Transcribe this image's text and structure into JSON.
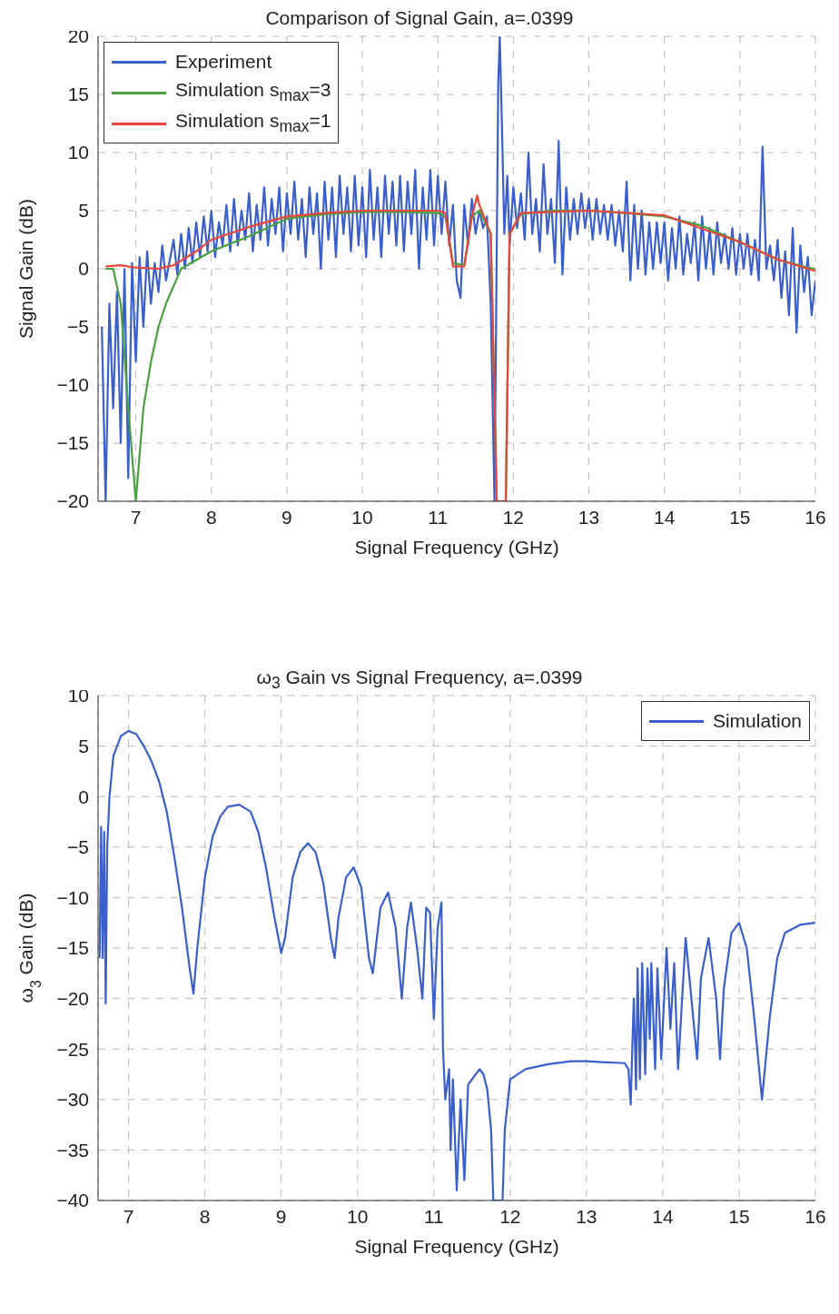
{
  "chart_data": [
    {
      "type": "line",
      "title": "Comparison of Signal Gain, a=.0399",
      "xlabel": "Signal Frequency (GHz)",
      "ylabel": "Signal Gain (dB)",
      "xlim": [
        6.5,
        16
      ],
      "ylim": [
        -20,
        20
      ],
      "xticks": [
        7,
        8,
        9,
        10,
        11,
        12,
        13,
        14,
        15,
        16
      ],
      "yticks": [
        -20,
        -15,
        -10,
        -5,
        0,
        5,
        10,
        15,
        20
      ],
      "grid": true,
      "legend": "top left",
      "series": [
        {
          "name": "Experiment",
          "color": "#3a5fcd",
          "x": [
            6.55,
            6.6,
            6.65,
            6.7,
            6.75,
            6.8,
            6.85,
            6.9,
            6.95,
            7.0,
            7.05,
            7.1,
            7.15,
            7.2,
            7.25,
            7.3,
            7.35,
            7.4,
            7.5,
            7.55,
            7.6,
            7.65,
            7.7,
            7.75,
            7.8,
            7.85,
            7.9,
            7.95,
            8.0,
            8.05,
            8.1,
            8.15,
            8.2,
            8.25,
            8.3,
            8.35,
            8.4,
            8.45,
            8.5,
            8.55,
            8.6,
            8.65,
            8.7,
            8.75,
            8.8,
            8.85,
            8.9,
            8.95,
            9.0,
            9.05,
            9.1,
            9.15,
            9.2,
            9.25,
            9.3,
            9.35,
            9.4,
            9.45,
            9.5,
            9.55,
            9.6,
            9.65,
            9.7,
            9.75,
            9.8,
            9.85,
            9.9,
            9.95,
            10.0,
            10.05,
            10.1,
            10.15,
            10.2,
            10.25,
            10.3,
            10.35,
            10.4,
            10.45,
            10.5,
            10.55,
            10.6,
            10.65,
            10.7,
            10.75,
            10.8,
            10.85,
            10.9,
            10.95,
            11.0,
            11.05,
            11.1,
            11.15,
            11.2,
            11.25,
            11.3,
            11.35,
            11.4,
            11.45,
            11.5,
            11.55,
            11.6,
            11.65,
            11.7,
            11.75,
            11.8,
            11.82,
            11.85,
            11.88,
            11.92,
            11.95,
            12.0,
            12.05,
            12.1,
            12.15,
            12.2,
            12.25,
            12.3,
            12.35,
            12.4,
            12.45,
            12.5,
            12.55,
            12.6,
            12.65,
            12.7,
            12.75,
            12.8,
            12.85,
            12.9,
            12.95,
            13.0,
            13.05,
            13.1,
            13.15,
            13.2,
            13.25,
            13.3,
            13.35,
            13.4,
            13.45,
            13.5,
            13.55,
            13.6,
            13.65,
            13.7,
            13.75,
            13.8,
            13.85,
            13.9,
            13.95,
            14.0,
            14.05,
            14.1,
            14.15,
            14.2,
            14.25,
            14.3,
            14.35,
            14.4,
            14.45,
            14.5,
            14.55,
            14.6,
            14.65,
            14.7,
            14.75,
            14.8,
            14.85,
            14.9,
            14.95,
            15.0,
            15.05,
            15.1,
            15.15,
            15.2,
            15.25,
            15.3,
            15.35,
            15.4,
            15.45,
            15.5,
            15.55,
            15.6,
            15.65,
            15.7,
            15.75,
            15.8,
            15.85,
            15.9,
            15.95,
            16.0
          ],
          "values": [
            -5,
            -20,
            -3,
            -12,
            -2,
            -15,
            0,
            -18,
            0.5,
            -8,
            1,
            -5,
            1.5,
            -3,
            0.5,
            -2,
            2,
            -1,
            2.5,
            -0.5,
            3,
            0,
            3.5,
            0.5,
            4,
            1,
            4.5,
            1.5,
            5,
            1,
            4,
            2,
            5.5,
            1.5,
            6,
            2,
            5,
            2.5,
            6.5,
            1.5,
            5.5,
            2.5,
            7,
            2,
            6,
            3,
            7,
            1.5,
            6.5,
            3,
            7.5,
            2.5,
            6,
            1,
            7,
            3,
            6.5,
            0,
            7.5,
            2.5,
            7,
            1,
            8,
            3,
            7,
            1.5,
            8,
            2,
            7,
            1,
            8.5,
            2.5,
            7,
            1,
            8,
            3,
            7.5,
            2,
            8,
            1.5,
            7.5,
            3,
            8.5,
            0,
            7,
            2.5,
            8.5,
            2,
            8,
            3,
            7.5,
            2,
            5.5,
            -1,
            -2.5,
            5.5,
            2,
            6,
            3,
            5,
            3.5,
            4.5,
            -3,
            -20,
            16,
            20,
            12,
            3,
            8,
            2,
            7,
            3.5,
            6.5,
            2.5,
            10,
            3,
            6,
            1.5,
            9,
            3,
            6,
            0.5,
            11,
            -0.5,
            7,
            2.5,
            6,
            3,
            6.5,
            3.5,
            6,
            2.5,
            6,
            3,
            5.5,
            2.5,
            5.5,
            2,
            5,
            1.5,
            7.5,
            -1,
            5.5,
            0,
            5,
            -0.5,
            4,
            0,
            4,
            0.5,
            4,
            -1,
            3.5,
            0,
            4.5,
            -0.5,
            3,
            0.5,
            4,
            -1,
            4.5,
            0,
            3.5,
            -0.5,
            4,
            0.5,
            3,
            0,
            3.5,
            -0.5,
            3,
            0,
            3,
            -0.5,
            2.5,
            -1,
            10.5,
            0,
            2,
            -1,
            2.5,
            -2.5,
            1.5,
            -4,
            3.5,
            -5.5,
            2,
            -2,
            1,
            -4,
            -1
          ]
        },
        {
          "name": "Simulation s$_{max}$=3",
          "color": "#4aa040",
          "x": [
            6.6,
            6.7,
            6.8,
            6.9,
            7.0,
            7.1,
            7.2,
            7.3,
            7.4,
            7.6,
            8.0,
            8.5,
            9.0,
            9.5,
            10.0,
            10.5,
            11.0,
            11.1,
            11.2,
            11.35,
            11.45,
            11.55,
            11.7,
            11.78,
            11.9,
            11.95,
            12.1,
            12.5,
            13.0,
            13.5,
            14.0,
            14.5,
            15.0,
            15.5,
            15.9,
            16.0
          ],
          "values": [
            0,
            0,
            -3,
            -12,
            -20,
            -12,
            -8,
            -5,
            -3,
            0,
            1.5,
            2.8,
            4.3,
            4.7,
            4.9,
            4.9,
            4.8,
            4.5,
            0.5,
            0.3,
            4.5,
            5,
            3,
            -20,
            -20,
            3,
            4.7,
            5,
            5,
            4.8,
            4.5,
            3.7,
            2.3,
            0.8,
            0.1,
            0
          ]
        },
        {
          "name": "Simulation s$_{max}$=1",
          "color": "#e8463a",
          "x": [
            6.6,
            6.8,
            7.0,
            7.3,
            7.5,
            7.8,
            8.0,
            8.5,
            9.0,
            9.5,
            10.0,
            11.0,
            11.1,
            11.2,
            11.35,
            11.45,
            11.52,
            11.55,
            11.7,
            11.78,
            11.9,
            11.95,
            12.1,
            13.0,
            14.0,
            15.0,
            15.5,
            16.0
          ],
          "values": [
            0.2,
            0.3,
            0.1,
            0,
            0.3,
            1.5,
            2.5,
            3.6,
            4.5,
            4.8,
            5,
            5,
            4.8,
            0.2,
            0.2,
            4.5,
            6.3,
            5.5,
            3,
            -20,
            -20,
            3,
            4.8,
            5,
            4.6,
            2.3,
            0.8,
            -0.2
          ]
        }
      ]
    },
    {
      "type": "line",
      "title": "ω$_{3}$ Gain vs Signal Frequency, a=.0399",
      "xlabel": "Signal Frequency (GHz)",
      "ylabel": "ω$_{3}$ Gain (dB)",
      "xlim": [
        6.6,
        16
      ],
      "ylim": [
        -40,
        10
      ],
      "xticks": [
        7,
        8,
        9,
        10,
        11,
        12,
        13,
        14,
        15,
        16
      ],
      "yticks": [
        -40,
        -35,
        -30,
        -25,
        -20,
        -15,
        -10,
        -5,
        0,
        5,
        10
      ],
      "grid": true,
      "legend": "top right",
      "series": [
        {
          "name": "Simulation",
          "color": "#3a5fcd",
          "x": [
            6.62,
            6.64,
            6.66,
            6.68,
            6.7,
            6.72,
            6.75,
            6.8,
            6.9,
            7.0,
            7.1,
            7.2,
            7.3,
            7.4,
            7.5,
            7.6,
            7.7,
            7.8,
            7.85,
            7.9,
            8.0,
            8.1,
            8.2,
            8.3,
            8.45,
            8.6,
            8.7,
            8.8,
            8.9,
            9.0,
            9.05,
            9.15,
            9.25,
            9.35,
            9.45,
            9.55,
            9.65,
            9.7,
            9.75,
            9.85,
            9.95,
            10.05,
            10.15,
            10.2,
            10.3,
            10.4,
            10.5,
            10.58,
            10.65,
            10.7,
            10.78,
            10.85,
            10.9,
            10.95,
            11.0,
            11.05,
            11.1,
            11.12,
            11.15,
            11.2,
            11.22,
            11.25,
            11.3,
            11.35,
            11.4,
            11.45,
            11.55,
            11.6,
            11.65,
            11.7,
            11.75,
            11.78,
            11.9,
            11.93,
            12.0,
            12.2,
            12.5,
            12.8,
            13.0,
            13.2,
            13.5,
            13.55,
            13.58,
            13.6,
            13.62,
            13.65,
            13.67,
            13.7,
            13.73,
            13.77,
            13.8,
            13.83,
            13.85,
            13.9,
            13.93,
            13.98,
            14.05,
            14.1,
            14.15,
            14.2,
            14.3,
            14.4,
            14.45,
            14.5,
            14.6,
            14.7,
            14.75,
            14.8,
            14.9,
            15.0,
            15.1,
            15.2,
            15.3,
            15.4,
            15.5,
            15.6,
            15.8,
            16.0
          ],
          "values": [
            -16,
            -3,
            -16,
            -3.5,
            -20.5,
            -5,
            0,
            4,
            6,
            6.5,
            6.2,
            5,
            3.5,
            1.5,
            -1.5,
            -6,
            -11,
            -17,
            -19.5,
            -15,
            -8,
            -4,
            -2,
            -1,
            -0.8,
            -1.5,
            -3.5,
            -7,
            -11.5,
            -15.5,
            -14,
            -8,
            -5.5,
            -4.6,
            -5.5,
            -8.5,
            -14,
            -16,
            -12,
            -8,
            -7,
            -9,
            -16,
            -17.5,
            -11,
            -9.5,
            -13,
            -20,
            -13,
            -10.5,
            -15,
            -20,
            -11,
            -11.5,
            -22,
            -13,
            -10.5,
            -25,
            -30,
            -27,
            -35,
            -28,
            -39,
            -30,
            -38,
            -28.5,
            -27.5,
            -27,
            -27.5,
            -29,
            -33,
            -40,
            -40,
            -33,
            -28,
            -27,
            -26.5,
            -26.2,
            -26.2,
            -26.3,
            -26.4,
            -27,
            -30.5,
            -25,
            -20,
            -29,
            -17,
            -28,
            -16.5,
            -27.5,
            -17,
            -24,
            -16.5,
            -27,
            -17,
            -26,
            -15,
            -23,
            -16.5,
            -27,
            -14,
            -22,
            -26,
            -18,
            -14,
            -20,
            -26,
            -19,
            -13.5,
            -12.5,
            -15,
            -22,
            -30,
            -22,
            -16,
            -13.5,
            -12.7,
            -12.5
          ]
        }
      ]
    }
  ]
}
